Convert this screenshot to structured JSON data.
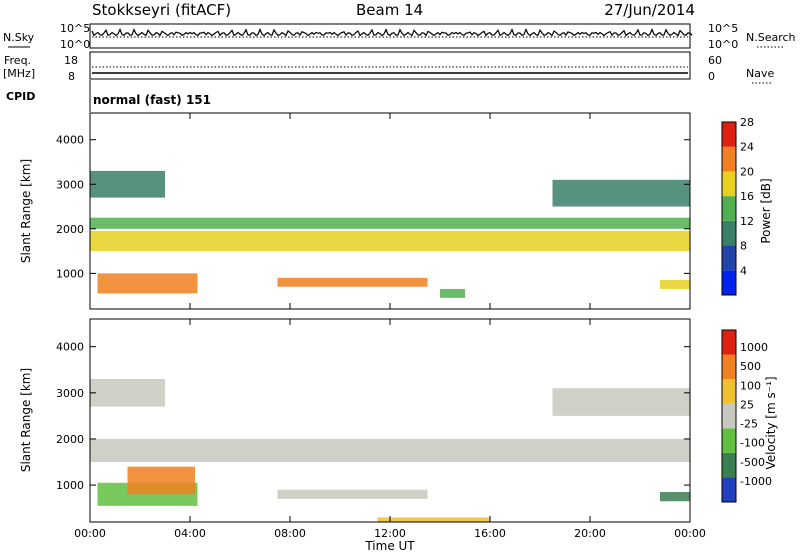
{
  "header": {
    "station": "Stokkseyri (fitACF)",
    "beam": "Beam 14",
    "date": "27/Jun/2014"
  },
  "top_panels": {
    "nsky_label": "N.Sky",
    "nsearch_label": "N.Search",
    "count_ticks": [
      "10^5",
      "10^0"
    ],
    "freq_label": "Freq.",
    "freq_unit": "[MHz]",
    "freq_ticks": [
      "18",
      "8"
    ],
    "nave_label": "Nave",
    "nave_ticks": [
      "60",
      "0"
    ],
    "cpid_label": "CPID",
    "cpid_value": "normal (fast) 151"
  },
  "chart_data": [
    {
      "type": "heatmap",
      "name": "power",
      "ylabel": "Slant Range [km]",
      "ylim": [
        200,
        4600
      ],
      "yticks": [
        "1000",
        "2000",
        "3000",
        "4000"
      ],
      "colorbar_label": "Power [dB]",
      "colorbar_ticks": [
        "4",
        "8",
        "12",
        "16",
        "20",
        "24",
        "28"
      ],
      "colors": [
        "#0022ee",
        "#2244aa",
        "#3a7f6a",
        "#50b050",
        "#e8d020",
        "#f08020",
        "#e02010"
      ],
      "bands": [
        {
          "start": 0.0,
          "end": 24.0,
          "range": [
            1500,
            1950
          ],
          "level": 4
        },
        {
          "start": 0.0,
          "end": 24.0,
          "range": [
            2000,
            2250
          ],
          "level": 3
        },
        {
          "start": 0.3,
          "end": 4.3,
          "range": [
            550,
            1000
          ],
          "level": 5
        },
        {
          "start": 7.5,
          "end": 13.5,
          "range": [
            700,
            900
          ],
          "level": 5
        },
        {
          "start": 0.0,
          "end": 3.0,
          "range": [
            2700,
            3300
          ],
          "level": 2
        },
        {
          "start": 18.5,
          "end": 24.0,
          "range": [
            2500,
            3100
          ],
          "level": 2
        },
        {
          "start": 14.0,
          "end": 15.0,
          "range": [
            450,
            650
          ],
          "level": 3
        },
        {
          "start": 22.8,
          "end": 24.0,
          "range": [
            650,
            850
          ],
          "level": 4
        }
      ]
    },
    {
      "type": "heatmap",
      "name": "velocity",
      "ylabel": "Slant Range [km]",
      "ylim": [
        200,
        4600
      ],
      "yticks": [
        "1000",
        "2000",
        "3000",
        "4000"
      ],
      "colorbar_label": "Velocity [m s⁻¹]",
      "colorbar_ticks": [
        "1000",
        "500",
        "100",
        "25",
        "-25",
        "-100",
        "-500",
        "-1000"
      ],
      "colors": [
        "#2040c0",
        "#3a7f50",
        "#60c040",
        "#c8c8c0",
        "#f0c030",
        "#f08020",
        "#e02010"
      ],
      "bands": [
        {
          "start": 0.0,
          "end": 24.0,
          "range": [
            1500,
            2000
          ],
          "level": 3
        },
        {
          "start": 0.3,
          "end": 4.3,
          "range": [
            550,
            1050
          ],
          "level": 2
        },
        {
          "start": 1.5,
          "end": 4.2,
          "range": [
            800,
            1400
          ],
          "level": 5
        },
        {
          "start": 7.5,
          "end": 13.5,
          "range": [
            700,
            900
          ],
          "level": 3
        },
        {
          "start": 11.5,
          "end": 16.0,
          "range": [
            200,
            300
          ],
          "level": 4
        },
        {
          "start": 0.0,
          "end": 3.0,
          "range": [
            2700,
            3300
          ],
          "level": 3
        },
        {
          "start": 18.5,
          "end": 24.0,
          "range": [
            2500,
            3100
          ],
          "level": 3
        },
        {
          "start": 22.8,
          "end": 24.0,
          "range": [
            650,
            850
          ],
          "level": 1
        }
      ]
    }
  ],
  "x_axis": {
    "label": "Time UT",
    "ticks": [
      "00:00",
      "04:00",
      "08:00",
      "12:00",
      "16:00",
      "20:00",
      "00:00"
    ]
  }
}
